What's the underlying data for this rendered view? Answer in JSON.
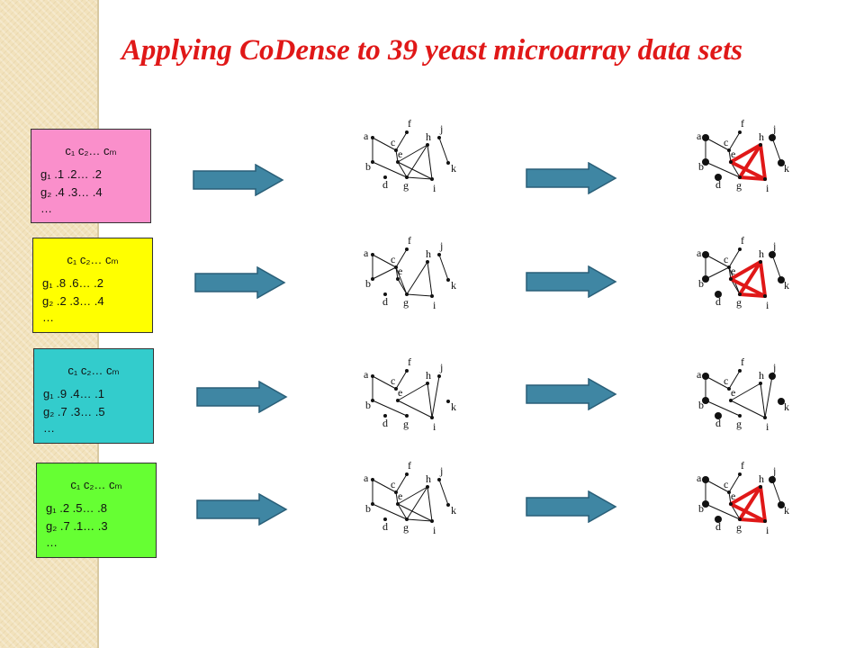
{
  "title": "Applying CoDense to 39 yeast microarray data sets",
  "colors": {
    "title": "#e01818",
    "arrow_fill": "#3f86a3",
    "arrow_stroke": "#2a5f78",
    "highlight": "#e01818",
    "matrix_1": "#fa8fcb",
    "matrix_2": "#ffff00",
    "matrix_3": "#33cccc",
    "matrix_4": "#66ff33"
  },
  "matrices": [
    {
      "header": "c₁ c₂… cₘ",
      "row1": "g₁ .1  .2… .2",
      "row2": "g₂ .4  .3… .4",
      "row3": "…"
    },
    {
      "header": "c₁ c₂… cₘ",
      "row1": "g₁ .8  .6… .2",
      "row2": "g₂ .2  .3… .4",
      "row3": "…"
    },
    {
      "header": "c₁ c₂… cₘ",
      "row1": "g₁ .9  .4… .1",
      "row2": "g₂ .7  .3… .5",
      "row3": "…"
    },
    {
      "header": "c₁ c₂… cₘ",
      "row1": "g₁ .2  .5… .8",
      "row2": "g₂ .7  .1… .3",
      "row3": "…"
    }
  ],
  "node_labels": {
    "a": "a",
    "b": "b",
    "c": "c",
    "d": "d",
    "e": "e",
    "f": "f",
    "g": "g",
    "h": "h",
    "i": "i",
    "j": "j",
    "k": "k"
  }
}
